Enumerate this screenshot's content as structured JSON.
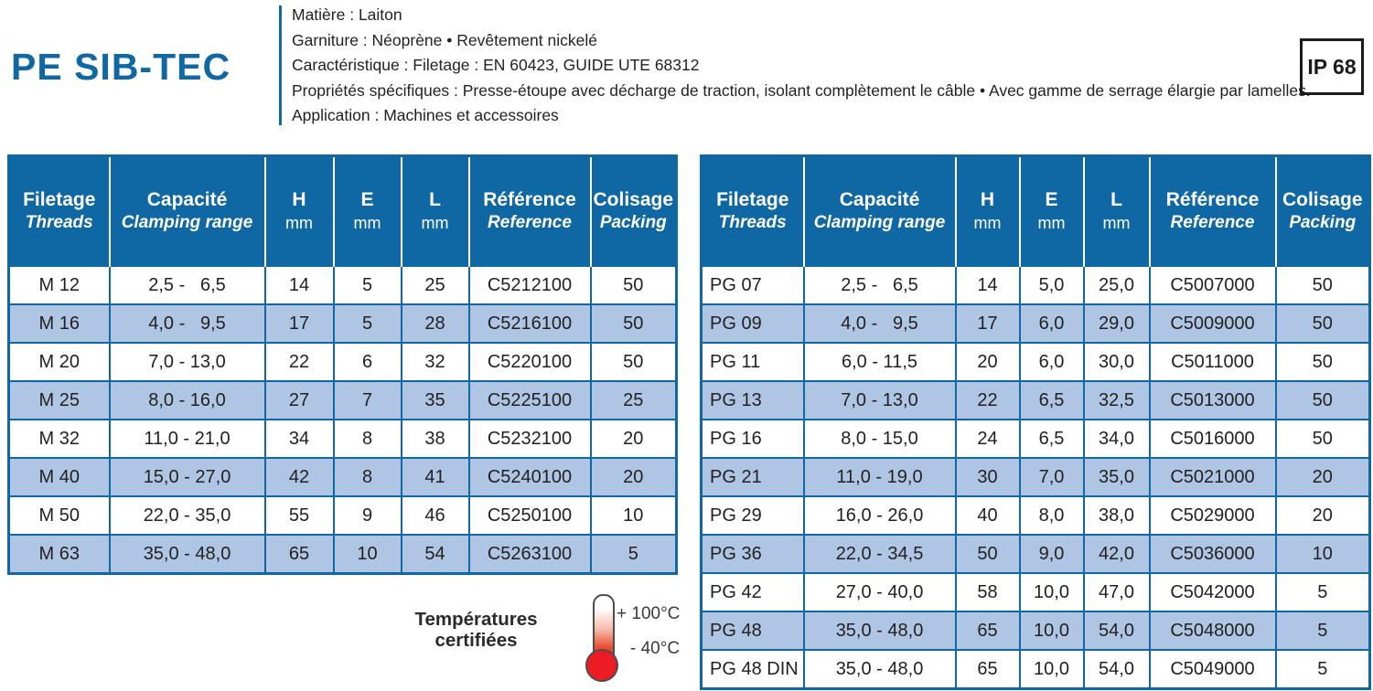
{
  "colors": {
    "blue": "#0f68a3",
    "rowalt": "#aec6e3",
    "ink": "#231f20",
    "red": "#ed1c24"
  },
  "header": {
    "title": "PE SIB-TEC",
    "specs": [
      "Matière : Laiton",
      "Garniture : Néoprène • Revêtement nickelé",
      "Caractéristique : Filetage : EN 60423, GUIDE UTE 68312",
      "Propriétés spécifiques : Presse-étoupe avec décharge de traction, isolant complètement le câble • Avec gamme de serrage élargie par lamelles.",
      "Application : Machines et accessoires"
    ],
    "ip_rating": "IP 68"
  },
  "table_header": {
    "columns": [
      {
        "key": "thread",
        "main": "Filetage",
        "sub": "Threads",
        "unit": false
      },
      {
        "key": "capacity",
        "main": "Capacité",
        "sub": "Clamping range",
        "unit": false
      },
      {
        "key": "h",
        "main": "H",
        "sub": "mm",
        "unit": true
      },
      {
        "key": "e",
        "main": "E",
        "sub": "mm",
        "unit": true
      },
      {
        "key": "l",
        "main": "L",
        "sub": "mm",
        "unit": true
      },
      {
        "key": "reference",
        "main": "Référence",
        "sub": "Reference",
        "unit": false
      },
      {
        "key": "packing",
        "main": "Colisage",
        "sub": "Packing",
        "unit": false
      }
    ]
  },
  "tables": [
    {
      "name": "metric-thread-table",
      "rows": [
        [
          "M 12",
          "2,5 -   6,5",
          "14",
          "5",
          "25",
          "C5212100",
          "50"
        ],
        [
          "M 16",
          "4,0 -   9,5",
          "17",
          "5",
          "28",
          "C5216100",
          "50"
        ],
        [
          "M 20",
          "7,0 - 13,0",
          "22",
          "6",
          "32",
          "C5220100",
          "50"
        ],
        [
          "M 25",
          "8,0 - 16,0",
          "27",
          "7",
          "35",
          "C5225100",
          "25"
        ],
        [
          "M 32",
          "11,0 - 21,0",
          "34",
          "8",
          "38",
          "C5232100",
          "20"
        ],
        [
          "M 40",
          "15,0 - 27,0",
          "42",
          "8",
          "41",
          "C5240100",
          "20"
        ],
        [
          "M 50",
          "22,0 - 35,0",
          "55",
          "9",
          "46",
          "C5250100",
          "10"
        ],
        [
          "M 63",
          "35,0 - 48,0",
          "65",
          "10",
          "54",
          "C5263100",
          "5"
        ]
      ]
    },
    {
      "name": "pg-thread-table",
      "rows": [
        [
          "PG 07",
          "2,5 -   6,5",
          "14",
          "5,0",
          "25,0",
          "C5007000",
          "50"
        ],
        [
          "PG 09",
          "4,0 -   9,5",
          "17",
          "6,0",
          "29,0",
          "C5009000",
          "50"
        ],
        [
          "PG 11",
          "6,0 - 11,5",
          "20",
          "6,0",
          "30,0",
          "C5011000",
          "50"
        ],
        [
          "PG 13",
          "7,0 - 13,0",
          "22",
          "6,5",
          "32,5",
          "C5013000",
          "50"
        ],
        [
          "PG 16",
          "8,0 - 15,0",
          "24",
          "6,5",
          "34,0",
          "C5016000",
          "50"
        ],
        [
          "PG 21",
          "11,0 - 19,0",
          "30",
          "7,0",
          "35,0",
          "C5021000",
          "20"
        ],
        [
          "PG 29",
          "16,0 - 26,0",
          "40",
          "8,0",
          "38,0",
          "C5029000",
          "20"
        ],
        [
          "PG 36",
          "22,0 - 34,5",
          "50",
          "9,0",
          "42,0",
          "C5036000",
          "10"
        ],
        [
          "PG 42",
          "27,0 - 40,0",
          "58",
          "10,0",
          "47,0",
          "C5042000",
          "5"
        ],
        [
          "PG 48",
          "35,0 - 48,0",
          "65",
          "10,0",
          "54,0",
          "C5048000",
          "5"
        ],
        [
          "PG 48 DIN",
          "35,0 - 48,0",
          "65",
          "10,0",
          "54,0",
          "C5049000",
          "5"
        ]
      ]
    }
  ],
  "temperatures": {
    "label_line1": "Températures",
    "label_line2": "certifiées",
    "max": "+ 100°C",
    "min": "- 40°C"
  }
}
